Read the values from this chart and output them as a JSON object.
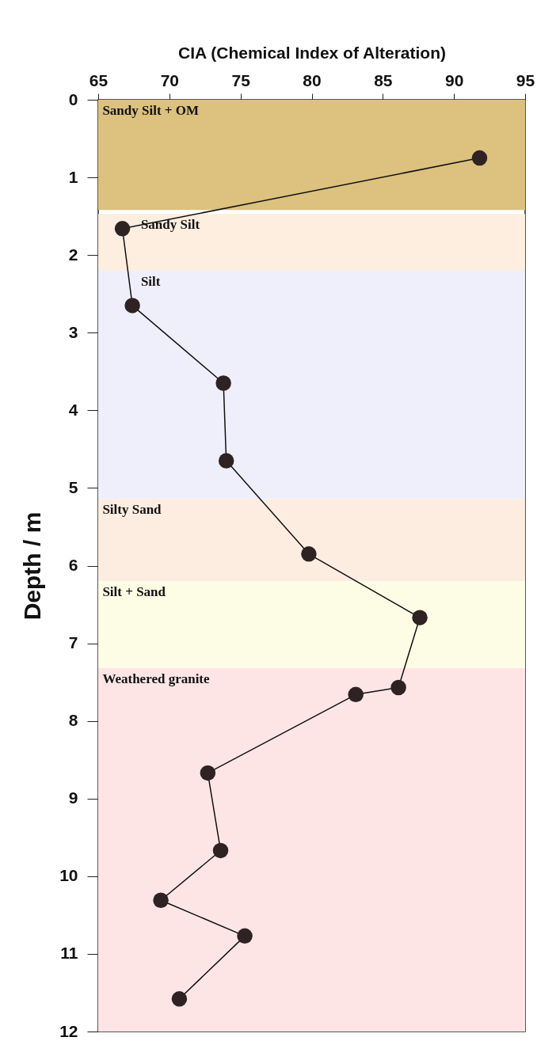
{
  "chart_data": {
    "type": "line",
    "xlabel": "CIA (Chemical Index of Alteration)",
    "ylabel": "Depth / m",
    "xlim": [
      65,
      95
    ],
    "xticks": [
      65,
      70,
      75,
      80,
      85,
      90,
      95
    ],
    "ylim": [
      12,
      0
    ],
    "yticks": [
      0,
      1,
      2,
      3,
      4,
      5,
      6,
      7,
      8,
      9,
      10,
      11,
      12
    ],
    "grid": false,
    "marker": "circle",
    "line_style": "solid",
    "series": [
      {
        "color": "#2e2222",
        "x": [
          91.8,
          66.7,
          67.4,
          73.8,
          74.0,
          79.8,
          87.6,
          86.1,
          83.1,
          72.7,
          73.6,
          69.4,
          75.3,
          70.7
        ],
        "values": [
          0.75,
          1.66,
          2.65,
          3.65,
          4.65,
          5.85,
          6.67,
          7.57,
          7.66,
          8.67,
          9.67,
          10.31,
          10.77,
          11.58
        ]
      }
    ],
    "bands": [
      {
        "axis": "y",
        "from": 0,
        "to": 1.42,
        "label": "Sandy  Silt + OM",
        "color": "#dcc17f"
      },
      {
        "axis": "y",
        "from": 1.47,
        "to": 2.2,
        "label": "Sandy  Silt",
        "color": "#fdeee0"
      },
      {
        "axis": "y",
        "from": 2.2,
        "to": 5.14,
        "label": "Silt",
        "color": "#efeefb"
      },
      {
        "axis": "y",
        "from": 5.14,
        "to": 6.2,
        "label": "Silty Sand",
        "color": "#fdede1"
      },
      {
        "axis": "y",
        "from": 6.2,
        "to": 7.32,
        "label": "Silt + Sand",
        "color": "#fdfde6"
      },
      {
        "axis": "y",
        "from": 7.32,
        "to": 12,
        "label": "Weathered  granite",
        "color": "#fde5e5"
      }
    ]
  }
}
